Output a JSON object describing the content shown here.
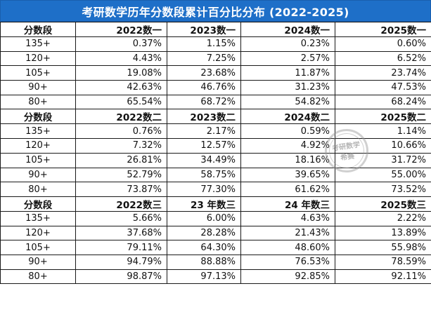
{
  "title": "考研数学历年分数段累计百分比分布 (2022-2025)",
  "sections": [
    {
      "headers": [
        "分数段",
        "2022数一",
        "2023数一",
        "2024数一",
        "2025数一"
      ],
      "rows": [
        [
          "135+",
          "0.37%",
          "1.15%",
          "0.23%",
          "0.60%"
        ],
        [
          "120+",
          "4.43%",
          "7.25%",
          "2.57%",
          "6.52%"
        ],
        [
          "105+",
          "19.08%",
          "23.68%",
          "11.87%",
          "23.74%"
        ],
        [
          "90+",
          "42.63%",
          "46.76%",
          "31.23%",
          "47.53%"
        ],
        [
          "80+",
          "65.54%",
          "68.72%",
          "54.82%",
          "68.24%"
        ]
      ]
    },
    {
      "headers": [
        "分数段",
        "2022数二",
        "2023数二",
        "2024数二",
        "2025数二"
      ],
      "rows": [
        [
          "135+",
          "0.76%",
          "2.17%",
          "0.59%",
          "1.14%"
        ],
        [
          "120+",
          "7.32%",
          "12.57%",
          "4.92%",
          "10.66%"
        ],
        [
          "105+",
          "26.81%",
          "34.49%",
          "18.16%",
          "31.72%"
        ],
        [
          "90+",
          "52.79%",
          "58.75%",
          "39.65%",
          "55.00%"
        ],
        [
          "80+",
          "73.87%",
          "77.30%",
          "61.62%",
          "73.52%"
        ]
      ]
    },
    {
      "headers": [
        "分数段",
        "2022数三",
        "23 年数三",
        "24 年数三",
        "2025数三"
      ],
      "rows": [
        [
          "135+",
          "5.66%",
          "6.00%",
          "4.63%",
          "2.22%"
        ],
        [
          "120+",
          "37.68%",
          "28.28%",
          "21.43%",
          "13.89%"
        ],
        [
          "105+",
          "79.11%",
          "64.30%",
          "48.60%",
          "55.98%"
        ],
        [
          "90+",
          "94.79%",
          "88.88%",
          "76.53%",
          "78.59%"
        ],
        [
          "80+",
          "98.87%",
          "97.13%",
          "92.85%",
          "92.11%"
        ]
      ]
    }
  ],
  "watermark": "考研数学希赛"
}
